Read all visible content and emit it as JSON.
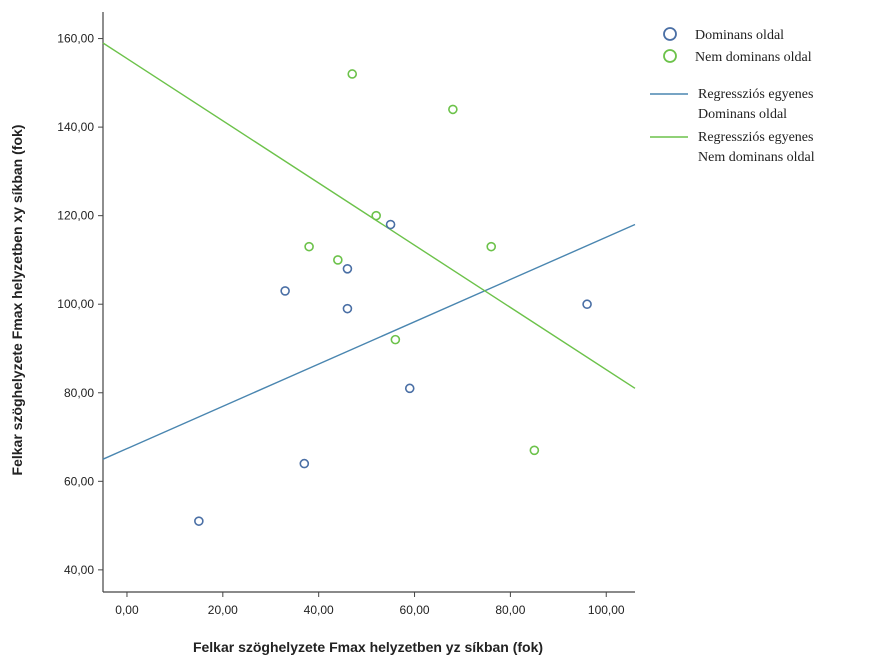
{
  "chart_data": {
    "type": "scatter",
    "xlabel": "Felkar szöghelyzete Fmax helyzetben yz síkban  (fok)",
    "ylabel": "Felkar szöghelyzete Fmax helyzetben xy síkban  (fok)",
    "xlim": [
      -5,
      106
    ],
    "ylim": [
      35,
      166
    ],
    "x_ticks": [
      "0,00",
      "20,00",
      "40,00",
      "60,00",
      "80,00",
      "100,00"
    ],
    "x_tick_values": [
      0,
      20,
      40,
      60,
      80,
      100
    ],
    "y_ticks": [
      "40,00",
      "60,00",
      "80,00",
      "100,00",
      "120,00",
      "140,00",
      "160,00"
    ],
    "y_tick_values": [
      40,
      60,
      80,
      100,
      120,
      140,
      160
    ],
    "grid": false,
    "legend_position": "top-right",
    "series": [
      {
        "name": "Dominans oldal",
        "color": "#4a6fa5",
        "marker": "circle",
        "points": [
          [
            15,
            51
          ],
          [
            33,
            103
          ],
          [
            37,
            64
          ],
          [
            46,
            99
          ],
          [
            46,
            108
          ],
          [
            55,
            118
          ],
          [
            59,
            81
          ],
          [
            96,
            100
          ]
        ]
      },
      {
        "name": "Nem dominans oldal",
        "color": "#6cc24a",
        "marker": "circle",
        "points": [
          [
            38,
            113
          ],
          [
            44,
            110
          ],
          [
            47,
            152
          ],
          [
            52,
            120
          ],
          [
            56,
            92
          ],
          [
            68,
            144
          ],
          [
            76,
            113
          ],
          [
            85,
            67
          ]
        ]
      }
    ],
    "regression_lines": [
      {
        "name": "Regressziós egyenes\nDominans oldal",
        "legend_lines": [
          "Regressziós egyenes",
          "Dominans oldal"
        ],
        "color": "#4a86b0",
        "x_range": [
          -5,
          106
        ],
        "y_range": [
          65,
          118
        ]
      },
      {
        "name": "Regressziós egyenes\nNem dominans oldal",
        "legend_lines": [
          "Regressziós egyenes",
          "Nem dominans oldal"
        ],
        "color": "#6cc24a",
        "x_range": [
          -5,
          106
        ],
        "y_range": [
          159,
          81
        ]
      }
    ]
  }
}
